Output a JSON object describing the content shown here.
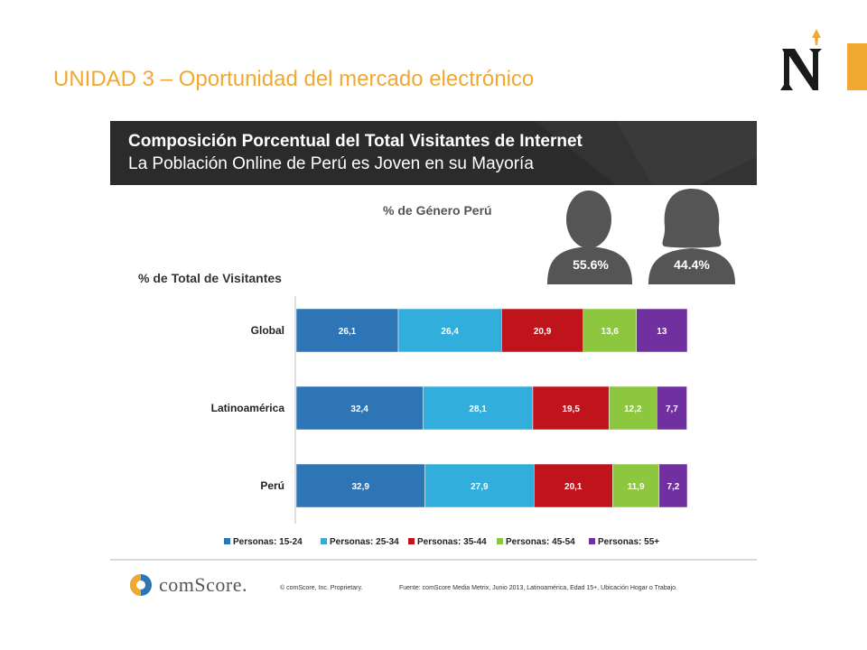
{
  "slide": {
    "title": "UNIDAD 3 – Oportunidad del mercado electrónico",
    "accent_color": "#F0A830",
    "logo_icon": "n-logo-icon"
  },
  "banner": {
    "title": "Composición Porcentual del Total Visitantes de Internet",
    "subtitle": "La Población Online de Perú es Joven en su Mayoría"
  },
  "gender": {
    "title": "% de Género Perú",
    "male": {
      "icon": "male-person-icon",
      "value": "55.6%"
    },
    "female": {
      "icon": "female-person-icon",
      "value": "44.4%"
    }
  },
  "chart_data": {
    "type": "bar",
    "orientation": "horizontal",
    "stacked": true,
    "title": "% de Total de Visitantes",
    "categories": [
      "Global",
      "Latinoamérica",
      "Perú"
    ],
    "series": [
      {
        "name": "Personas: 15-24",
        "color": "#2E75B6",
        "values": [
          26.1,
          32.4,
          32.9
        ],
        "labels": [
          "26,1",
          "32,4",
          "32,9"
        ]
      },
      {
        "name": "Personas: 25-34",
        "color": "#31AEDC",
        "values": [
          26.4,
          28.1,
          27.9
        ],
        "labels": [
          "26,4",
          "28,1",
          "27,9"
        ]
      },
      {
        "name": "Personas: 35-44",
        "color": "#C0141C",
        "values": [
          20.9,
          19.5,
          20.1
        ],
        "labels": [
          "20,9",
          "19,5",
          "20,1"
        ]
      },
      {
        "name": "Personas: 45-54",
        "color": "#8DC63F",
        "values": [
          13.6,
          12.2,
          11.9
        ],
        "labels": [
          "13,6",
          "12,2",
          "11,9"
        ]
      },
      {
        "name": "Personas: 55+",
        "color": "#7030A0",
        "values": [
          13,
          7.7,
          7.2
        ],
        "labels": [
          "13",
          "7,7",
          "7,2"
        ]
      }
    ],
    "xlim": [
      0,
      100
    ],
    "grid": false,
    "legend_position": "bottom"
  },
  "footer": {
    "brand": "comScore.",
    "copyright": "© comScore, Inc.   Proprietary.",
    "source": "Fuente: comScore Media Metrix, Junio 2013, Latinoamérica, Edad 15+, Ubicación Hogar o Trabajo."
  }
}
